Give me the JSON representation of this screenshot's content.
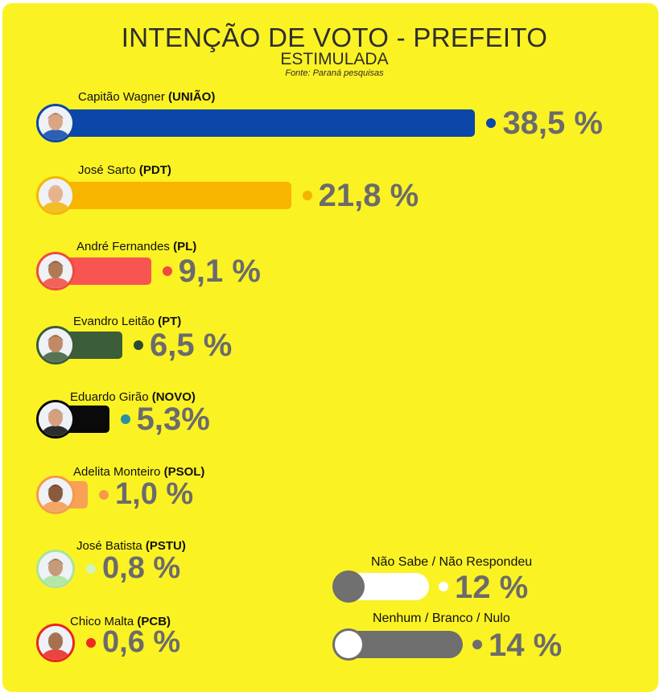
{
  "header": {
    "title": "INTENÇÃO DE VOTO - PREFEITO",
    "subtitle": "ESTIMULADA",
    "source": "Fonte: Paraná pesquisas"
  },
  "chart_data": {
    "type": "bar",
    "title": "INTENÇÃO DE VOTO - PREFEITO",
    "subtitle": "ESTIMULADA",
    "unit": "%",
    "candidates": [
      {
        "name": "Capitão  Wagner",
        "party": "(UNIÃO)",
        "value": 38.5,
        "label": "38,5 %",
        "bar_color": "#0b47a8",
        "dot_color": "#0b47a8",
        "ring_color": "#0b47a8"
      },
      {
        "name": "José  Sarto",
        "party": "(PDT)",
        "value": 21.8,
        "label": "21,8 %",
        "bar_color": "#f7b500",
        "dot_color": "#f5b400",
        "ring_color": "#f5b400"
      },
      {
        "name": "André Fernandes",
        "party": "(PL)",
        "value": 9.1,
        "label": "9,1 %",
        "bar_color": "#f85552",
        "dot_color": "#f04a3e",
        "ring_color": "#f04a3e"
      },
      {
        "name": "Evandro Leitão",
        "party": "(PT)",
        "value": 6.5,
        "label": "6,5 %",
        "bar_color": "#3c5d3a",
        "dot_color": "#2f4a2e",
        "ring_color": "#3c5d3a"
      },
      {
        "name": "Eduardo  Girão",
        "party": "(NOVO)",
        "value": 5.3,
        "label": "5,3%",
        "bar_color": "#0a0a0a",
        "dot_color": "#2b8fa3",
        "ring_color": "#0a0a0a"
      },
      {
        "name": "Adelita Monteiro",
        "party": "(PSOL)",
        "value": 1.0,
        "label": "1,0 %",
        "bar_color": "#f9a057",
        "dot_color": "#f59a4b",
        "ring_color": "#f59a4b"
      },
      {
        "name": "José  Batista",
        "party": "(PSTU)",
        "value": 0.8,
        "label": "0,8 %",
        "bar_color": "#c7f0b0",
        "dot_color": "#d3f3bb",
        "ring_color": "#a9e49a"
      },
      {
        "name": "Chico Malta",
        "party": "(PCB)",
        "value": 0.6,
        "label": "0,6 %",
        "bar_color": "#e8261e",
        "dot_color": "#ee2a22",
        "ring_color": "#e8261e"
      }
    ],
    "extras": [
      {
        "name": "Não Sabe / Não Respondeu",
        "value": 12,
        "label": "12 %",
        "pill_color": "#ffffff",
        "knob_color": "#707070",
        "dot_color": "#ffffff"
      },
      {
        "name": "Nenhum / Branco / Nulo",
        "value": 14,
        "label": "14 %",
        "pill_color": "#6e6e6e",
        "knob_color": "#ffffff",
        "dot_color": "#6e6e6e"
      }
    ]
  }
}
